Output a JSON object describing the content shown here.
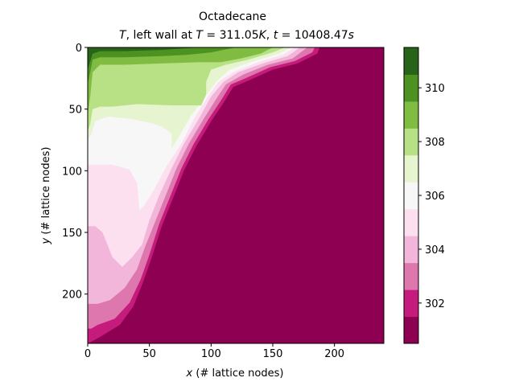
{
  "chart_data": {
    "type": "heatmap",
    "title_line1": "Octadecane",
    "title_line2": {
      "var": "T",
      "mid": ", left wall at ",
      "var2": "T",
      "eq1": " = 311.05",
      "unit1": "K",
      "sep": ", ",
      "var3": "t",
      "eq2": " = 10408.47",
      "unit2": "s"
    },
    "xlabel": {
      "var": "x",
      "rest": " (# lattice nodes)"
    },
    "ylabel": {
      "var": "y",
      "rest": " (# lattice nodes)"
    },
    "xlim": [
      0,
      240
    ],
    "ylim": [
      240,
      0
    ],
    "xticks": [
      0,
      50,
      100,
      150,
      200
    ],
    "yticks": [
      0,
      50,
      100,
      150,
      200
    ],
    "colorbar": {
      "levels": [
        300.8,
        301.8,
        302.2,
        303.2,
        303.8,
        304.8,
        305.2,
        306.2,
        306.8,
        307.8,
        308.2,
        309.2,
        310.2,
        311.05
      ],
      "ticks": [
        302,
        304,
        306,
        308,
        310
      ],
      "colors": [
        "#8e0152",
        "#c51b7d",
        "#de77ae",
        "#f1b6da",
        "#fde0ef",
        "#f7f7f7",
        "#e6f5d0",
        "#b8e186",
        "#7fbc41",
        "#4d9221",
        "#276419"
      ]
    },
    "regions": [
      {
        "band": 0,
        "points": [
          [
            0,
            0
          ],
          [
            240,
            0
          ],
          [
            240,
            240
          ],
          [
            0,
            240
          ]
        ]
      },
      {
        "band": 1,
        "points": [
          [
            0,
            0
          ],
          [
            188,
            0
          ],
          [
            186,
            5
          ],
          [
            170,
            13
          ],
          [
            150,
            18
          ],
          [
            130,
            27
          ],
          [
            118,
            32
          ],
          [
            110,
            45
          ],
          [
            100,
            60
          ],
          [
            88,
            80
          ],
          [
            78,
            100
          ],
          [
            68,
            125
          ],
          [
            60,
            145
          ],
          [
            52,
            170
          ],
          [
            45,
            190
          ],
          [
            37,
            210
          ],
          [
            26,
            225
          ],
          [
            13,
            233
          ],
          [
            6,
            237
          ],
          [
            0,
            240
          ]
        ]
      },
      {
        "band": 2,
        "points": [
          [
            0,
            0
          ],
          [
            184,
            0
          ],
          [
            182,
            4
          ],
          [
            168,
            11
          ],
          [
            148,
            16
          ],
          [
            128,
            25
          ],
          [
            116,
            30
          ],
          [
            108,
            43
          ],
          [
            98,
            58
          ],
          [
            86,
            78
          ],
          [
            76,
            98
          ],
          [
            66,
            123
          ],
          [
            58,
            143
          ],
          [
            50,
            168
          ],
          [
            43,
            188
          ],
          [
            34,
            207
          ],
          [
            22,
            220
          ],
          [
            8,
            225
          ],
          [
            3,
            228
          ],
          [
            0,
            228
          ]
        ]
      },
      {
        "band": 3,
        "points": [
          [
            0,
            0
          ],
          [
            178,
            0
          ],
          [
            166,
            9
          ],
          [
            146,
            14
          ],
          [
            126,
            22
          ],
          [
            112,
            30
          ],
          [
            104,
            42
          ],
          [
            94,
            58
          ],
          [
            82,
            78
          ],
          [
            72,
            98
          ],
          [
            62,
            123
          ],
          [
            54,
            143
          ],
          [
            46,
            163
          ],
          [
            40,
            180
          ],
          [
            30,
            195
          ],
          [
            18,
            205
          ],
          [
            8,
            208
          ],
          [
            0,
            208
          ]
        ]
      },
      {
        "band": 4,
        "points": [
          [
            0,
            0
          ],
          [
            172,
            0
          ],
          [
            162,
            7
          ],
          [
            142,
            13
          ],
          [
            122,
            20
          ],
          [
            110,
            28
          ],
          [
            100,
            40
          ],
          [
            90,
            58
          ],
          [
            78,
            78
          ],
          [
            68,
            98
          ],
          [
            58,
            120
          ],
          [
            50,
            140
          ],
          [
            44,
            160
          ],
          [
            36,
            170
          ],
          [
            28,
            178
          ],
          [
            20,
            170
          ],
          [
            12,
            150
          ],
          [
            6,
            145
          ],
          [
            0,
            145
          ]
        ]
      },
      {
        "band": 5,
        "points": [
          [
            0,
            0
          ],
          [
            168,
            0
          ],
          [
            158,
            6
          ],
          [
            138,
            12
          ],
          [
            118,
            20
          ],
          [
            106,
            28
          ],
          [
            96,
            42
          ],
          [
            86,
            58
          ],
          [
            76,
            78
          ],
          [
            64,
            96
          ],
          [
            54,
            115
          ],
          [
            46,
            128
          ],
          [
            42,
            132
          ],
          [
            40,
            110
          ],
          [
            34,
            99
          ],
          [
            20,
            95
          ],
          [
            12,
            95
          ],
          [
            6,
            95
          ],
          [
            0,
            95
          ]
        ]
      },
      {
        "band": 6,
        "points": [
          [
            0,
            0
          ],
          [
            165,
            0
          ],
          [
            155,
            5
          ],
          [
            135,
            11
          ],
          [
            115,
            18
          ],
          [
            104,
            28
          ],
          [
            94,
            42
          ],
          [
            84,
            55
          ],
          [
            74,
            72
          ],
          [
            68,
            82
          ],
          [
            68,
            70
          ],
          [
            60,
            64
          ],
          [
            50,
            61
          ],
          [
            35,
            58
          ],
          [
            16,
            56
          ],
          [
            6,
            60
          ],
          [
            3,
            70
          ],
          [
            0,
            75
          ]
        ]
      },
      {
        "band": 7,
        "points": [
          [
            0,
            0
          ],
          [
            160,
            0
          ],
          [
            150,
            4
          ],
          [
            130,
            10
          ],
          [
            112,
            14
          ],
          [
            100,
            18
          ],
          [
            96,
            28
          ],
          [
            96,
            38
          ],
          [
            92,
            47
          ],
          [
            70,
            47
          ],
          [
            40,
            46
          ],
          [
            20,
            48
          ],
          [
            10,
            48
          ],
          [
            4,
            50
          ],
          [
            2,
            62
          ],
          [
            0,
            68
          ]
        ]
      },
      {
        "band": 8,
        "points": [
          [
            0,
            0
          ],
          [
            150,
            0
          ],
          [
            140,
            5
          ],
          [
            124,
            9
          ],
          [
            108,
            12
          ],
          [
            90,
            12
          ],
          [
            60,
            13
          ],
          [
            30,
            14
          ],
          [
            10,
            14
          ],
          [
            4,
            20
          ],
          [
            2,
            40
          ],
          [
            0,
            55
          ]
        ]
      },
      {
        "band": 9,
        "points": [
          [
            0,
            0
          ],
          [
            120,
            0
          ],
          [
            100,
            4
          ],
          [
            80,
            6
          ],
          [
            60,
            7
          ],
          [
            30,
            8
          ],
          [
            10,
            8
          ],
          [
            4,
            10
          ],
          [
            2,
            20
          ],
          [
            0,
            30
          ]
        ]
      },
      {
        "band": 10,
        "points": [
          [
            0,
            0
          ],
          [
            90,
            0
          ],
          [
            60,
            2
          ],
          [
            30,
            3
          ],
          [
            10,
            3
          ],
          [
            4,
            5
          ],
          [
            1,
            15
          ],
          [
            0,
            18
          ]
        ]
      }
    ]
  }
}
